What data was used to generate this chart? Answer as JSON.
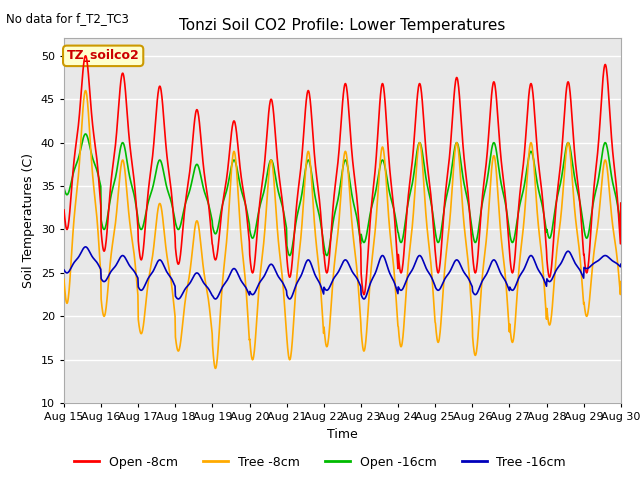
{
  "title": "Tonzi Soil CO2 Profile: Lower Temperatures",
  "subtitle": "No data for f_T2_TC3",
  "xlabel": "Time",
  "ylabel": "Soil Temperatures (C)",
  "ylim": [
    10,
    52
  ],
  "yticks": [
    10,
    15,
    20,
    25,
    30,
    35,
    40,
    45,
    50
  ],
  "x_labels": [
    "Aug 15",
    "Aug 16",
    "Aug 17",
    "Aug 18",
    "Aug 19",
    "Aug 20",
    "Aug 21",
    "Aug 22",
    "Aug 23",
    "Aug 24",
    "Aug 25",
    "Aug 26",
    "Aug 27",
    "Aug 28",
    "Aug 29",
    "Aug 30"
  ],
  "legend_label_box": "TZ_soilco2",
  "legend_entries": [
    "Open -8cm",
    "Tree -8cm",
    "Open -16cm",
    "Tree -16cm"
  ],
  "legend_colors": [
    "#ff0000",
    "#ffaa00",
    "#00bb00",
    "#0000bb"
  ],
  "background_color": "#e8e8e8",
  "grid_color": "#ffffff",
  "line_width": 1.2,
  "open_8cm_peaks": [
    50.0,
    48.0,
    46.5,
    43.8,
    42.5,
    45.0,
    46.0,
    46.8,
    46.8,
    46.8,
    47.5,
    47.0,
    46.8,
    47.0,
    49.0,
    49.0
  ],
  "open_8cm_troughs": [
    30.0,
    27.5,
    26.5,
    26.0,
    26.5,
    25.0,
    24.5,
    25.0,
    22.5,
    25.0,
    25.0,
    25.0,
    25.0,
    24.5,
    25.0,
    31.0
  ],
  "tree_8cm_peaks": [
    46.0,
    38.0,
    33.0,
    31.0,
    39.0,
    38.0,
    39.0,
    39.0,
    39.5,
    40.0,
    40.0,
    38.5,
    40.0,
    40.0,
    38.0,
    24.0
  ],
  "tree_8cm_troughs": [
    21.5,
    20.0,
    18.0,
    16.0,
    14.0,
    15.0,
    15.0,
    16.5,
    16.0,
    16.5,
    17.0,
    15.5,
    17.0,
    19.0,
    20.0,
    24.0
  ],
  "open_16cm_peaks": [
    41.0,
    40.0,
    38.0,
    37.5,
    38.0,
    38.0,
    38.0,
    38.0,
    38.0,
    40.0,
    40.0,
    40.0,
    39.0,
    40.0,
    40.0,
    33.0
  ],
  "open_16cm_troughs": [
    34.0,
    30.0,
    30.0,
    30.0,
    29.5,
    29.0,
    27.0,
    27.0,
    28.5,
    28.5,
    28.5,
    28.5,
    28.5,
    29.0,
    29.0,
    33.0
  ],
  "tree_16cm_peaks": [
    28.0,
    27.0,
    26.5,
    25.0,
    25.5,
    26.0,
    26.5,
    26.5,
    27.0,
    27.0,
    26.5,
    26.5,
    27.0,
    27.5,
    27.0,
    26.0
  ],
  "tree_16cm_troughs": [
    25.0,
    24.0,
    23.0,
    22.0,
    22.0,
    22.5,
    22.0,
    23.0,
    22.0,
    23.0,
    23.0,
    22.5,
    23.0,
    24.0,
    25.5,
    26.0
  ]
}
